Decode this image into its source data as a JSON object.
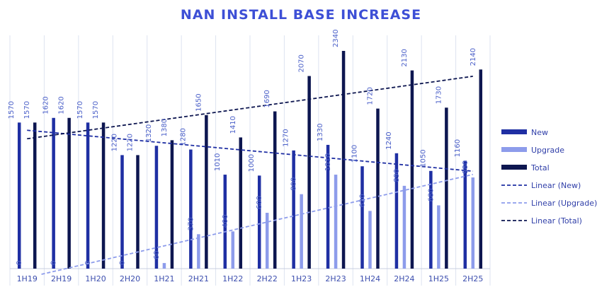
{
  "chart_data": {
    "type": "bar",
    "title": "NAN INSTALL BASE INCREASE",
    "xlabel": "",
    "ylabel": "",
    "ylim": [
      0,
      2400
    ],
    "grid": "vertical category separators",
    "legend_position": "right",
    "categories": [
      "1H19",
      "2H19",
      "1H20",
      "2H20",
      "1H21",
      "2H21",
      "1H22",
      "2H22",
      "1H23",
      "2H23",
      "1H24",
      "2H24",
      "1H25",
      "2H25"
    ],
    "series": [
      {
        "name": "New",
        "color": "#1f2fa3",
        "values": [
          1570,
          1620,
          1570,
          1220,
          1320,
          1280,
          1010,
          1000,
          1270,
          1330,
          1100,
          1240,
          1050,
          1160
        ]
      },
      {
        "name": "Upgrade",
        "color": "#8d9ceb",
        "values": [
          0,
          0,
          0,
          0,
          60,
          370,
          400,
          600,
          800,
          1010,
          620,
          890,
          680,
          980
        ]
      },
      {
        "name": "Total",
        "color": "#0d1650",
        "values": [
          1570,
          1620,
          1570,
          1220,
          1380,
          1650,
          1410,
          1690,
          2070,
          2340,
          1720,
          2130,
          1730,
          2140
        ]
      }
    ],
    "trendlines": [
      {
        "name": "Linear (New)",
        "of": "New",
        "color": "#1f2fa3",
        "style": "dashed"
      },
      {
        "name": "Linear (Upgrade)",
        "of": "Upgrade",
        "color": "#8d9ceb",
        "style": "dashed"
      },
      {
        "name": "Linear (Total)",
        "of": "Total",
        "color": "#0d1650",
        "style": "dashed"
      }
    ],
    "title_color": "#3d4fd6",
    "label_color": "#4a5fc8"
  }
}
